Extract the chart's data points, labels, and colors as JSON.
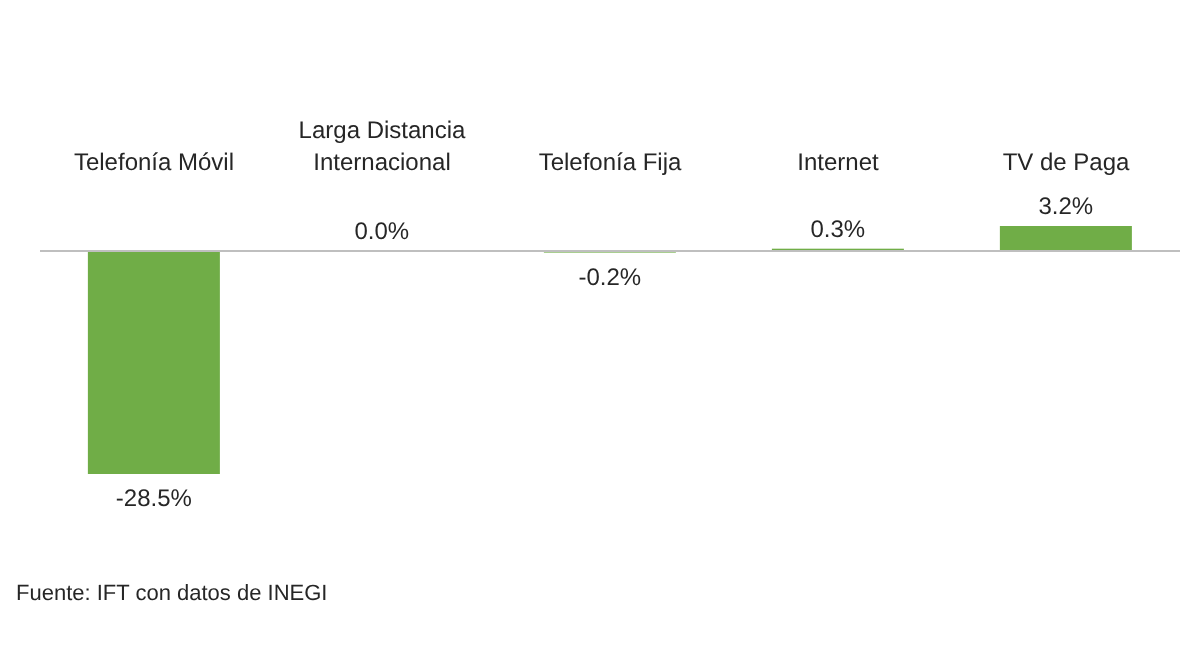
{
  "chart_data": {
    "type": "bar",
    "categories": [
      "Telefonía Móvil",
      "Larga Distancia Internacional",
      "Telefonía Fija",
      "Internet",
      "TV de Paga"
    ],
    "values": [
      -28.5,
      0.0,
      -0.2,
      0.3,
      3.2
    ],
    "value_labels": [
      "-28.5%",
      "0.0%",
      "-0.2%",
      "0.3%",
      "3.2%"
    ],
    "color": "#70ad47",
    "legend": false,
    "grid": false,
    "annotations": [
      "Fuente: IFT con datos de INEGI"
    ]
  }
}
